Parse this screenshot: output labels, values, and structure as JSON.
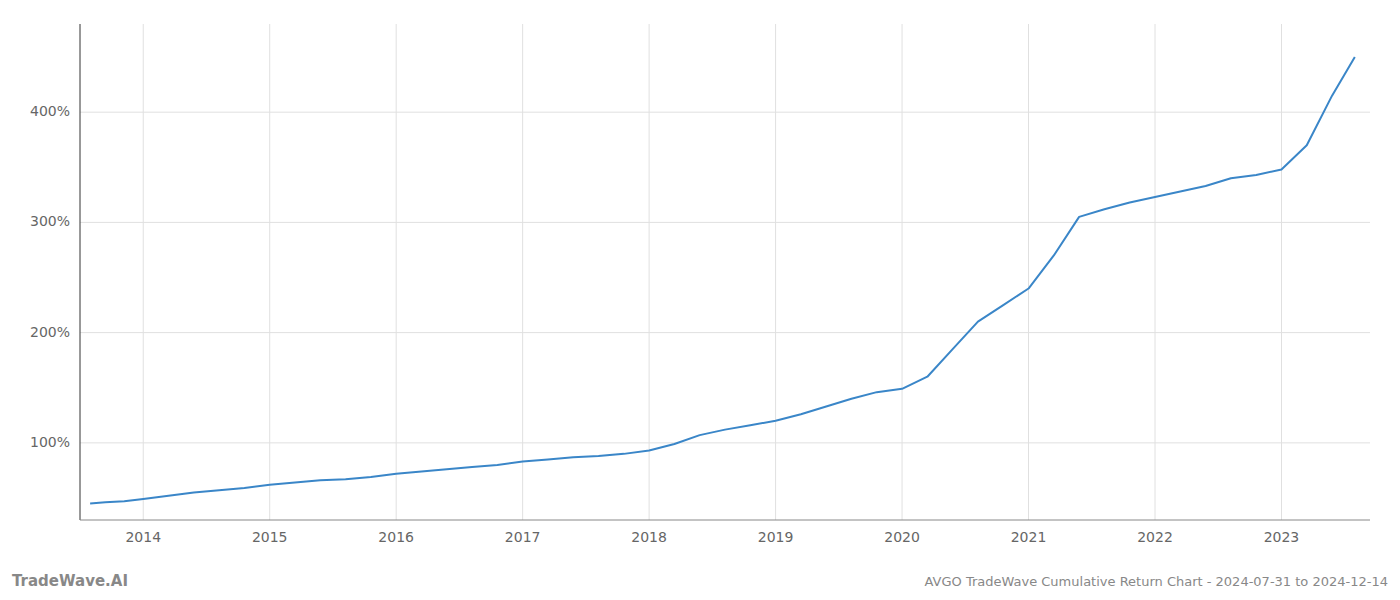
{
  "chart_data": {
    "type": "line",
    "title": "AVGO TradeWave Cumulative Return Chart - 2024-07-31 to 2024-12-14",
    "annotations": [
      "TradeWave.AI"
    ],
    "color": "#3a86c8",
    "grid": true,
    "x": [
      2013.58,
      2013.7,
      2013.85,
      2014.0,
      2014.2,
      2014.4,
      2014.6,
      2014.8,
      2015.0,
      2015.2,
      2015.4,
      2015.6,
      2015.8,
      2016.0,
      2016.2,
      2016.4,
      2016.6,
      2016.8,
      2017.0,
      2017.2,
      2017.4,
      2017.6,
      2017.8,
      2018.0,
      2018.2,
      2018.4,
      2018.6,
      2018.8,
      2019.0,
      2019.2,
      2019.4,
      2019.6,
      2019.8,
      2020.0,
      2020.2,
      2020.4,
      2020.6,
      2020.8,
      2021.0,
      2021.2,
      2021.4,
      2021.6,
      2021.8,
      2022.0,
      2022.2,
      2022.4,
      2022.6,
      2022.8,
      2023.0,
      2023.2,
      2023.4,
      2023.58
    ],
    "values": [
      45,
      46,
      47,
      49,
      52,
      55,
      57,
      59,
      62,
      64,
      66,
      67,
      69,
      72,
      74,
      76,
      78,
      80,
      83,
      85,
      87,
      88,
      90,
      93,
      99,
      107,
      112,
      116,
      120,
      126,
      133,
      140,
      146,
      149,
      160,
      185,
      210,
      225,
      240,
      270,
      305,
      312,
      318,
      323,
      328,
      333,
      340,
      343,
      348,
      370,
      415,
      450
    ],
    "xlim": [
      2013.5,
      2023.7
    ],
    "xticks": [
      2014,
      2015,
      2016,
      2017,
      2018,
      2019,
      2020,
      2021,
      2022,
      2023
    ],
    "ylim": [
      30,
      480
    ],
    "yticks": [
      {
        "value": 100,
        "label": "100%"
      },
      {
        "value": 200,
        "label": "200%"
      },
      {
        "value": 300,
        "label": "300%"
      },
      {
        "value": 400,
        "label": "400%"
      }
    ]
  }
}
